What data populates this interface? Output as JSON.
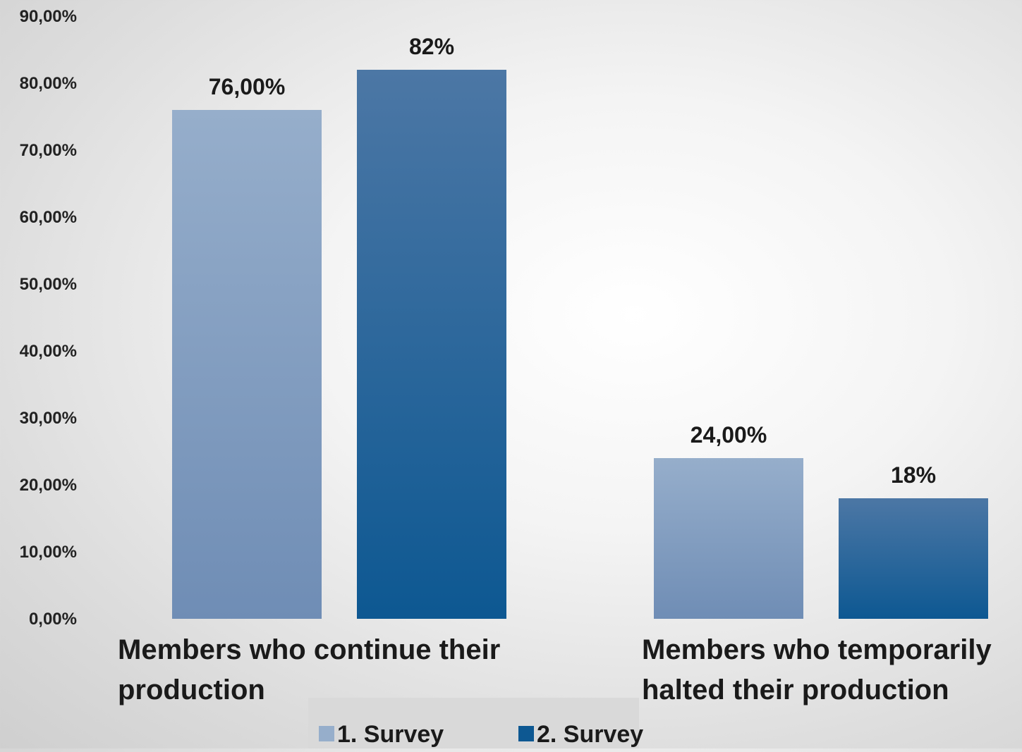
{
  "chart_data": {
    "type": "bar",
    "title": "",
    "xlabel": "",
    "ylabel": "",
    "ylim": [
      0,
      0.9
    ],
    "yticks": [
      "0,00%",
      "10,00%",
      "20,00%",
      "30,00%",
      "40,00%",
      "50,00%",
      "60,00%",
      "70,00%",
      "80,00%",
      "90,00%"
    ],
    "categories": [
      [
        "Members who continue their",
        "production"
      ],
      [
        "Members who temporarily",
        "halted their production"
      ]
    ],
    "series": [
      {
        "name": "1. Survey",
        "values": [
          0.76,
          0.24
        ],
        "labels": [
          "76,00%",
          "24,00%"
        ],
        "color_top": "#96aecb",
        "color_bottom": "#6f8db5"
      },
      {
        "name": "2. Survey",
        "values": [
          0.82,
          0.18
        ],
        "labels": [
          "82%",
          "18%"
        ],
        "color_top": "#4c77a5",
        "color_bottom": "#0d5892"
      }
    ],
    "legend": {
      "position": "bottom",
      "background": "#d9d9d9"
    },
    "grid": false
  }
}
